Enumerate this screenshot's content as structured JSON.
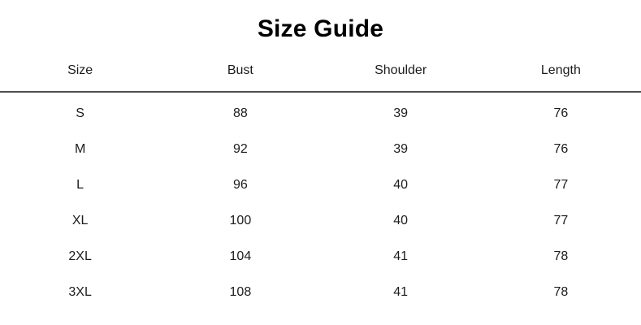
{
  "page": {
    "background_color": "#ffffff",
    "text_color": "#1a1a1a",
    "divider_color": "#4d4d4d"
  },
  "chart_data": {
    "type": "table",
    "title": "Size Guide",
    "columns": [
      "Size",
      "Bust",
      "Shoulder",
      "Length"
    ],
    "rows": [
      [
        "S",
        "88",
        "39",
        "76"
      ],
      [
        "M",
        "92",
        "39",
        "76"
      ],
      [
        "L",
        "96",
        "40",
        "77"
      ],
      [
        "XL",
        "100",
        "40",
        "77"
      ],
      [
        "2XL",
        "104",
        "41",
        "78"
      ],
      [
        "3XL",
        "108",
        "41",
        "78"
      ]
    ]
  }
}
